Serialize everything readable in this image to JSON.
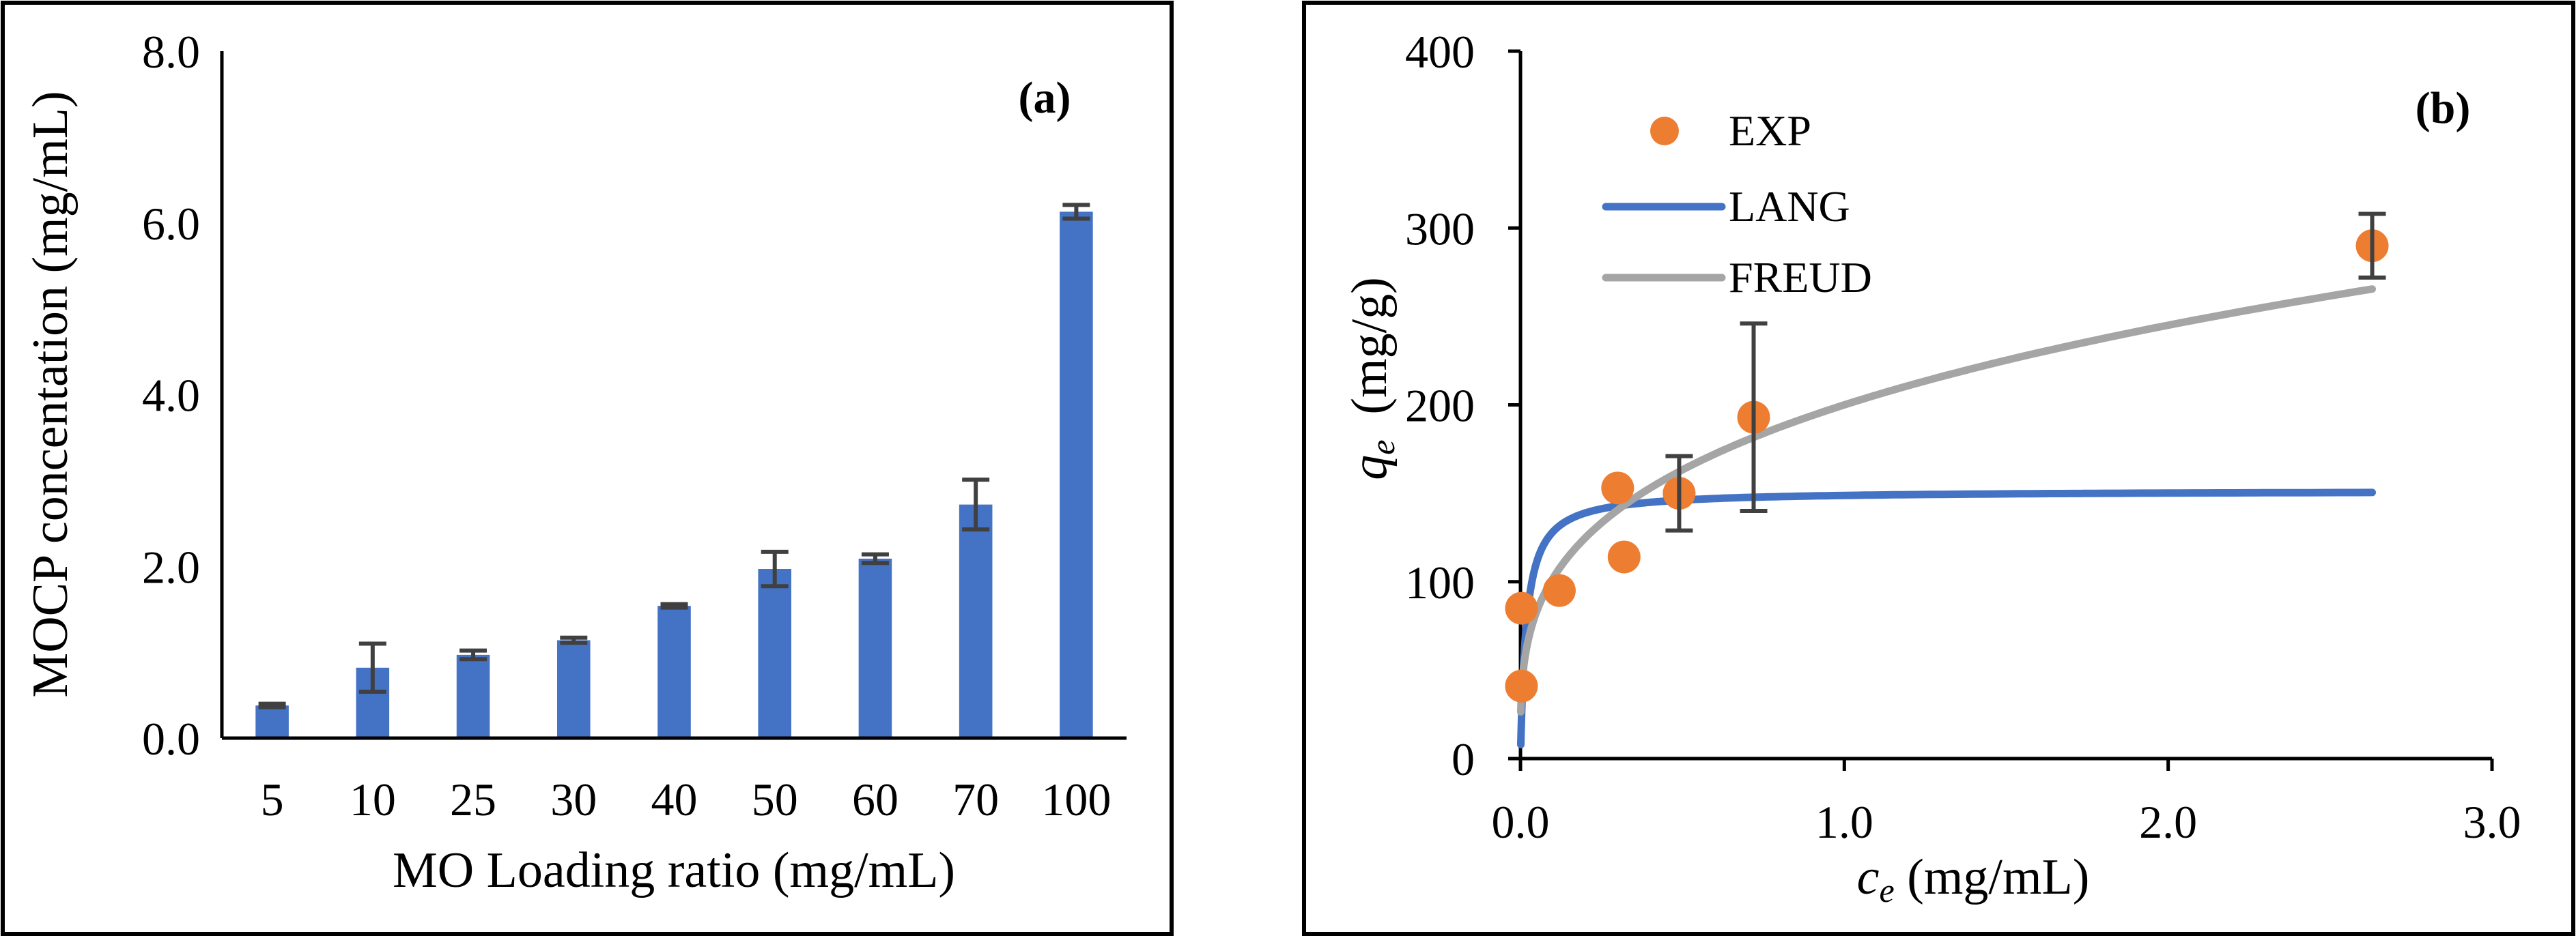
{
  "chart_data": [
    {
      "type": "bar",
      "panel_label": "(a)",
      "title": "",
      "xlabel": "MO Loading ratio (mg/mL)",
      "ylabel": "MOCP concentation (mg/mL)",
      "categories": [
        "5",
        "10",
        "25",
        "30",
        "40",
        "50",
        "60",
        "70",
        "100"
      ],
      "values": [
        0.38,
        0.82,
        0.97,
        1.14,
        1.54,
        1.97,
        2.09,
        2.72,
        6.13
      ],
      "errors": [
        0.02,
        0.28,
        0.05,
        0.03,
        0.02,
        0.2,
        0.05,
        0.29,
        0.08
      ],
      "ylim": [
        0,
        8
      ],
      "yticks": [
        "0.0",
        "2.0",
        "4.0",
        "6.0",
        "8.0"
      ],
      "ytick_values": [
        0,
        2,
        4,
        6,
        8
      ],
      "bar_color": "#4472c4",
      "error_color": "#404040",
      "grid": false
    },
    {
      "type": "scatter",
      "panel_label": "(b)",
      "title": "",
      "xlabel_var": "c",
      "xlabel_sub": "e",
      "xlabel_unit": " (mg/mL)",
      "ylabel_var": "q",
      "ylabel_sub": "e",
      "ylabel_unit": "  (mg/g)",
      "xlim": [
        0,
        3
      ],
      "ylim": [
        0,
        400
      ],
      "xticks": [
        "0.0",
        "1.0",
        "2.0",
        "3.0"
      ],
      "xtick_values": [
        0,
        1,
        2,
        3
      ],
      "yticks": [
        "0",
        "100",
        "200",
        "300",
        "400"
      ],
      "ytick_values": [
        0,
        100,
        200,
        300,
        400
      ],
      "legend_position": "top-left",
      "series": [
        {
          "name": "EXP",
          "kind": "points",
          "color": "#ed7d31",
          "x": [
            0.003,
            0.003,
            0.12,
            0.3,
            0.32,
            0.49,
            0.72,
            2.63
          ],
          "y": [
            41,
            85,
            95,
            153,
            114,
            150,
            193,
            290
          ],
          "err": [
            0,
            0,
            0,
            0,
            0,
            21,
            53,
            18
          ]
        },
        {
          "name": "LANG",
          "kind": "line",
          "color": "#4472c4",
          "model": "langmuir",
          "qmax": 151.5,
          "K": 55,
          "x_start": 0.001,
          "x_end": 2.63
        },
        {
          "name": "FREUD",
          "kind": "line",
          "color": "#a5a5a5",
          "model": "freundlich",
          "Kf": 200,
          "n_inv": 0.293,
          "x_start": 0.001,
          "x_end": 2.63
        }
      ],
      "grid": false
    }
  ]
}
